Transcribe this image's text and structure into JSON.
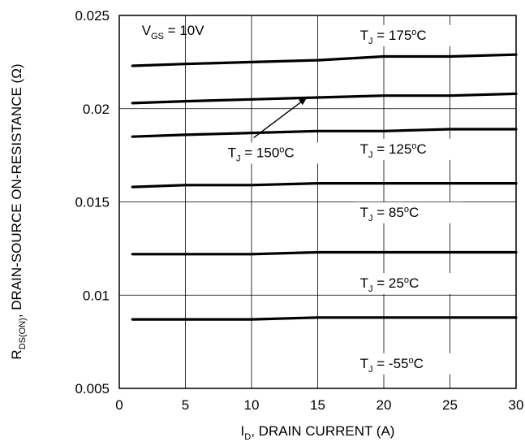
{
  "chart_data": {
    "type": "line",
    "xlabel": {
      "main": "I",
      "sub": "D",
      "rest": ", DRAIN CURRENT (A)"
    },
    "ylabel": {
      "main": "R",
      "sub": "DS(ON)",
      "rest": ",   DRAIN-SOURCE ON-RESISTANCE (Ω)"
    },
    "xlim": [
      0,
      30
    ],
    "ylim": [
      0.005,
      0.025
    ],
    "xticks": [
      0,
      5,
      10,
      15,
      20,
      25,
      30
    ],
    "xtick_labels": [
      "0",
      "5",
      "10",
      "15",
      "20",
      "25",
      "30"
    ],
    "yticks": [
      0.005,
      0.01,
      0.015,
      0.02,
      0.025
    ],
    "ytick_labels": [
      "0.005",
      "0.01",
      "0.015",
      "0.02",
      "0.025"
    ],
    "grid": true,
    "condition": {
      "main": "V",
      "sub": "GS",
      "rest": " = 10V"
    },
    "series": [
      {
        "name": "T_J = 175°C",
        "x": [
          1,
          5,
          10,
          15,
          20,
          25,
          30
        ],
        "y": [
          0.0223,
          0.0224,
          0.0225,
          0.0226,
          0.0228,
          0.0228,
          0.0229
        ]
      },
      {
        "name": "T_J = 150°C",
        "x": [
          1,
          5,
          10,
          15,
          20,
          25,
          30
        ],
        "y": [
          0.0203,
          0.0204,
          0.0205,
          0.0206,
          0.0207,
          0.0207,
          0.0208
        ]
      },
      {
        "name": "T_J = 125°C",
        "x": [
          1,
          5,
          10,
          15,
          20,
          25,
          30
        ],
        "y": [
          0.0185,
          0.0186,
          0.0187,
          0.0188,
          0.0188,
          0.0189,
          0.0189
        ]
      },
      {
        "name": "T_J = 85°C",
        "x": [
          1,
          5,
          10,
          15,
          20,
          25,
          30
        ],
        "y": [
          0.0158,
          0.0159,
          0.0159,
          0.016,
          0.016,
          0.016,
          0.016
        ]
      },
      {
        "name": "T_J = 25°C",
        "x": [
          1,
          5,
          10,
          15,
          20,
          25,
          30
        ],
        "y": [
          0.0122,
          0.0122,
          0.0122,
          0.0123,
          0.0123,
          0.0123,
          0.0123
        ]
      },
      {
        "name": "T_J = -55°C",
        "x": [
          1,
          5,
          10,
          15,
          20,
          25,
          30
        ],
        "y": [
          0.0087,
          0.0087,
          0.0087,
          0.0088,
          0.0088,
          0.0088,
          0.0088
        ]
      }
    ],
    "annotations": [
      {
        "text": "= 175",
        "label_x": 18.2,
        "label_y": 0.0237,
        "series": 0
      },
      {
        "text": "= 150",
        "label_x": 8.2,
        "label_y": 0.0174,
        "series": 1,
        "arrow_to_x": 14.2,
        "arrow_to_y": 0.0206
      },
      {
        "text": "= 125",
        "label_x": 18.2,
        "label_y": 0.0176,
        "series": 2
      },
      {
        "text": "= 85",
        "label_x": 18.2,
        "label_y": 0.0142,
        "series": 3
      },
      {
        "text": "= 25",
        "label_x": 18.2,
        "label_y": 0.0104,
        "series": 4
      },
      {
        "text": "= -55",
        "label_x": 18.2,
        "label_y": 0.0061,
        "series": 5
      }
    ],
    "temp_letter": "T",
    "temp_sub": "J",
    "degree_symbol": "o",
    "temp_unit": "C"
  }
}
